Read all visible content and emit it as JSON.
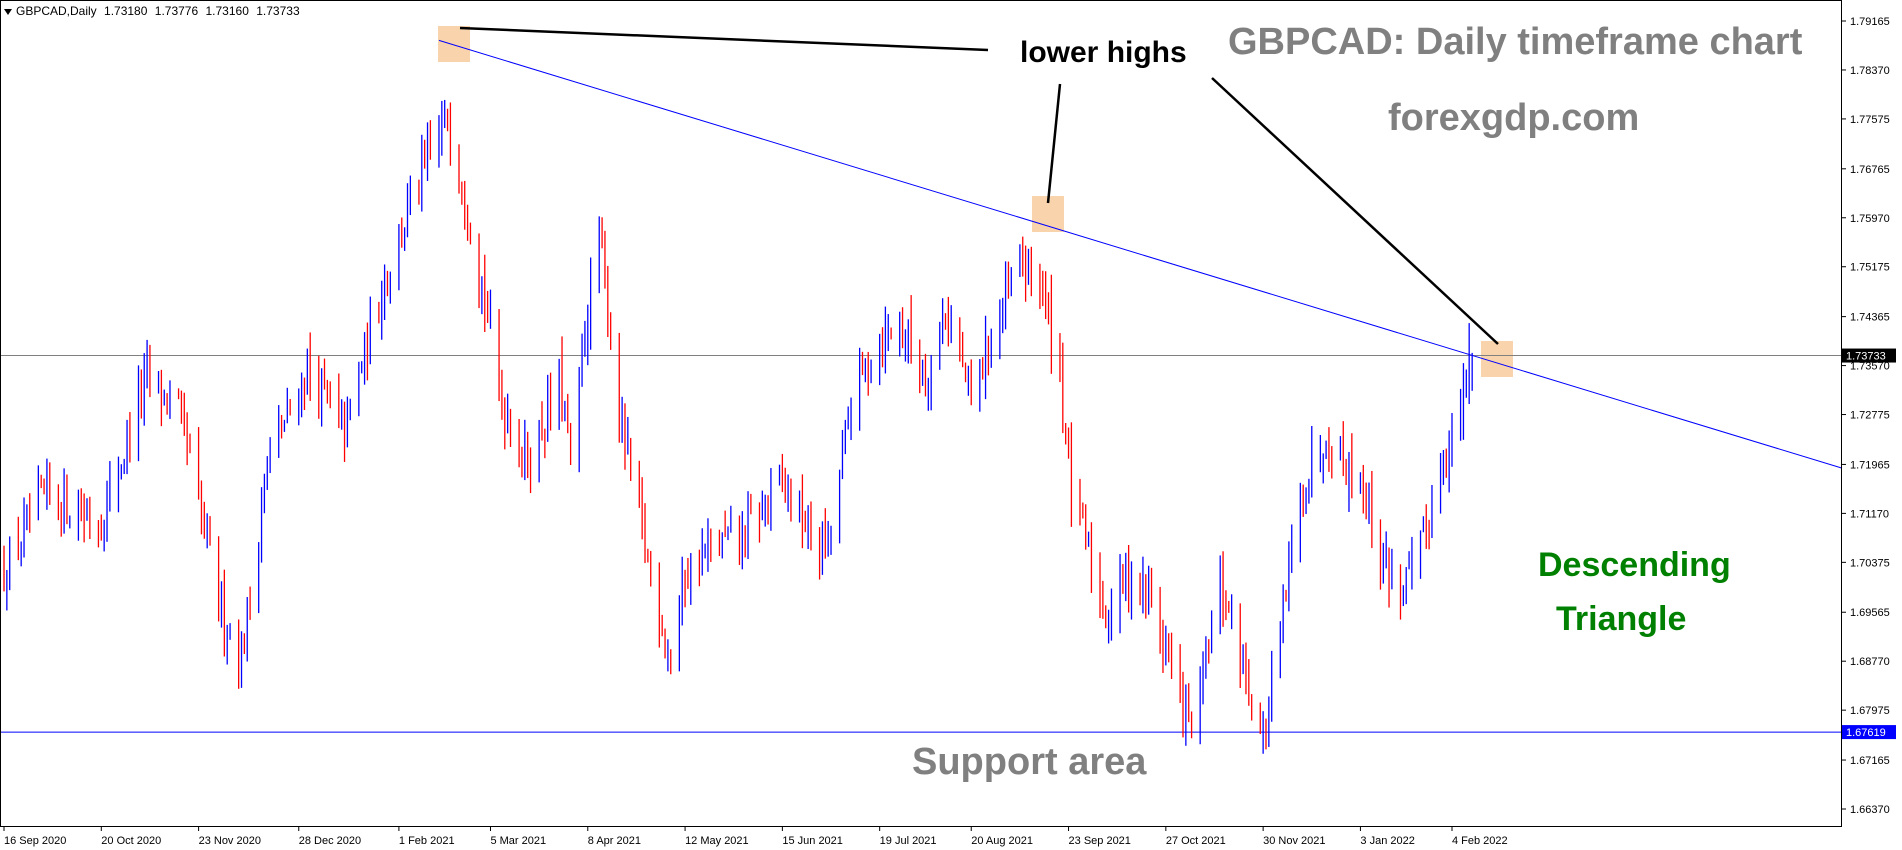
{
  "header": {
    "symbol": "GBPCAD,Daily",
    "open": "1.73180",
    "high": "1.73776",
    "low": "1.73160",
    "close": "1.73733"
  },
  "colors": {
    "bull": "#0000ff",
    "bear": "#ff0000",
    "trendline": "#0000ff",
    "support": "#0000ff",
    "current_price_line": "#808080",
    "highlight": "#f7c48f",
    "title_gray": "#808080",
    "pattern_green": "#008000"
  },
  "annotations": {
    "title": "GBPCAD: Daily timeframe chart",
    "site": "forexgdp.com",
    "lower_highs": "lower highs",
    "pattern_line1": "Descending",
    "pattern_line2": "Triangle",
    "support": "Support area"
  },
  "chart_data": {
    "type": "candlestick",
    "title": "GBPCAD: Daily timeframe chart",
    "symbol": "GBPCAD",
    "timeframe": "Daily",
    "ylim": [
      1.6615,
      1.793
    ],
    "y_ticks": [
      "1.79165",
      "1.78370",
      "1.77575",
      "1.76765",
      "1.75970",
      "1.75175",
      "1.74365",
      "1.73570",
      "1.72775",
      "1.71965",
      "1.71170",
      "1.70375",
      "1.69565",
      "1.68770",
      "1.67975",
      "1.67165",
      "1.66370"
    ],
    "x_tick_labels": [
      "16 Sep 2020",
      "20 Oct 2020",
      "23 Nov 2020",
      "28 Dec 2020",
      "1 Feb 2021",
      "5 Mar 2021",
      "8 Apr 2021",
      "12 May 2021",
      "15 Jun 2021",
      "19 Jul 2021",
      "20 Aug 2021",
      "23 Sep 2021",
      "27 Oct 2021",
      "30 Nov 2021",
      "3 Jan 2022",
      "4 Feb 2022"
    ],
    "current_price": 1.73733,
    "current_price_label": "1.73733",
    "support_level": 1.67619,
    "support_label": "1.67619",
    "trendline": {
      "from": {
        "date": "15 Feb 2021",
        "price": 1.7885
      },
      "to": {
        "date": "10 Feb 2022",
        "price": 1.7375
      }
    },
    "grid": false,
    "anchors": [
      {
        "date": "16 Sep 2020",
        "price": 1.702
      },
      {
        "date": "1 Oct 2020",
        "price": 1.715
      },
      {
        "date": "20 Oct 2020",
        "price": 1.71
      },
      {
        "date": "5 Nov 2020",
        "price": 1.734
      },
      {
        "date": "16 Nov 2020",
        "price": 1.728
      },
      {
        "date": "1 Dec 2020",
        "price": 1.696
      },
      {
        "date": "8 Dec 2020",
        "price": 1.688
      },
      {
        "date": "17 Dec 2020",
        "price": 1.72
      },
      {
        "date": "31 Dec 2020",
        "price": 1.735
      },
      {
        "date": "13 Jan 2021",
        "price": 1.725
      },
      {
        "date": "27 Jan 2021",
        "price": 1.75
      },
      {
        "date": "5 Feb 2021",
        "price": 1.762
      },
      {
        "date": "18 Feb 2021",
        "price": 1.776
      },
      {
        "date": "26 Feb 2021",
        "price": 1.76
      },
      {
        "date": "9 Mar 2021",
        "price": 1.73
      },
      {
        "date": "18 Mar 2021",
        "price": 1.72
      },
      {
        "date": "29 Mar 2021",
        "price": 1.733
      },
      {
        "date": "2 Apr 2021",
        "price": 1.72
      },
      {
        "date": "8 Apr 2021",
        "price": 1.745
      },
      {
        "date": "12 Apr 2021",
        "price": 1.756
      },
      {
        "date": "20 Apr 2021",
        "price": 1.725
      },
      {
        "date": "30 Apr 2021",
        "price": 1.702
      },
      {
        "date": "7 May 2021",
        "price": 1.688
      },
      {
        "date": "12 May 2021",
        "price": 1.702
      },
      {
        "date": "21 May 2021",
        "price": 1.706
      },
      {
        "date": "1 Jun 2021",
        "price": 1.708
      },
      {
        "date": "15 Jun 2021",
        "price": 1.717
      },
      {
        "date": "25 Jun 2021",
        "price": 1.708
      },
      {
        "date": "1 Jul 2021",
        "price": 1.706
      },
      {
        "date": "9 Jul 2021",
        "price": 1.73
      },
      {
        "date": "16 Jul 2021",
        "price": 1.738
      },
      {
        "date": "26 Jul 2021",
        "price": 1.743
      },
      {
        "date": "4 Aug 2021",
        "price": 1.734
      },
      {
        "date": "11 Aug 2021",
        "price": 1.745
      },
      {
        "date": "20 Aug 2021",
        "price": 1.73
      },
      {
        "date": "27 Aug 2021",
        "price": 1.74
      },
      {
        "date": "6 Sep 2021",
        "price": 1.752
      },
      {
        "date": "13 Sep 2021",
        "price": 1.75
      },
      {
        "date": "20 Sep 2021",
        "price": 1.735
      },
      {
        "date": "24 Sep 2021",
        "price": 1.715
      },
      {
        "date": "30 Sep 2021",
        "price": 1.705
      },
      {
        "date": "6 Oct 2021",
        "price": 1.695
      },
      {
        "date": "13 Oct 2021",
        "price": 1.702
      },
      {
        "date": "21 Oct 2021",
        "price": 1.699
      },
      {
        "date": "29 Oct 2021",
        "price": 1.687
      },
      {
        "date": "4 Nov 2021",
        "price": 1.677
      },
      {
        "date": "8 Nov 2021",
        "price": 1.682
      },
      {
        "date": "15 Nov 2021",
        "price": 1.7
      },
      {
        "date": "22 Nov 2021",
        "price": 1.69
      },
      {
        "date": "30 Nov 2021",
        "price": 1.674
      },
      {
        "date": "6 Dec 2021",
        "price": 1.692
      },
      {
        "date": "13 Dec 2021",
        "price": 1.715
      },
      {
        "date": "22 Dec 2021",
        "price": 1.725
      },
      {
        "date": "30 Dec 2021",
        "price": 1.719
      },
      {
        "date": "3 Jan 2022",
        "price": 1.718
      },
      {
        "date": "10 Jan 2022",
        "price": 1.705
      },
      {
        "date": "17 Jan 2022",
        "price": 1.699
      },
      {
        "date": "24 Jan 2022",
        "price": 1.705
      },
      {
        "date": "31 Jan 2022",
        "price": 1.72
      },
      {
        "date": "4 Feb 2022",
        "price": 1.723
      },
      {
        "date": "8 Feb 2022",
        "price": 1.73
      },
      {
        "date": "10 Feb 2022",
        "price": 1.7373
      }
    ]
  }
}
